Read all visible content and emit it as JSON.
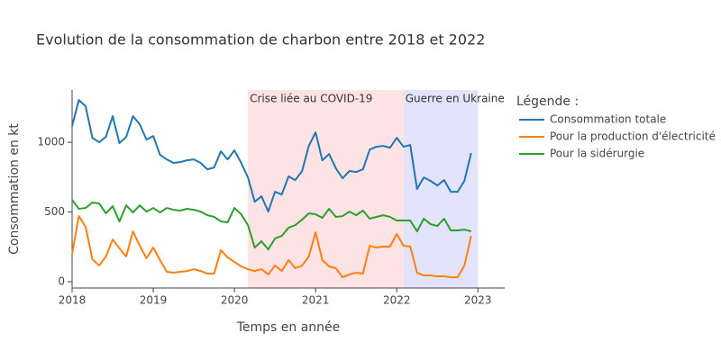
{
  "chart_data": {
    "type": "line",
    "title": "Evolution de la consommation de charbon entre 2018 et 2022",
    "x_label": "Temps en année",
    "y_label": "Consommation en kt",
    "legend_title": "Légende :",
    "legend_position": "right",
    "grid": false,
    "x": [
      "2018-01",
      "2018-02",
      "2018-03",
      "2018-04",
      "2018-05",
      "2018-06",
      "2018-07",
      "2018-08",
      "2018-09",
      "2018-10",
      "2018-11",
      "2018-12",
      "2019-01",
      "2019-02",
      "2019-03",
      "2019-04",
      "2019-05",
      "2019-06",
      "2019-07",
      "2019-08",
      "2019-09",
      "2019-10",
      "2019-11",
      "2019-12",
      "2020-01",
      "2020-02",
      "2020-03",
      "2020-04",
      "2020-05",
      "2020-06",
      "2020-07",
      "2020-08",
      "2020-09",
      "2020-10",
      "2020-11",
      "2020-12",
      "2021-01",
      "2021-02",
      "2021-03",
      "2021-04",
      "2021-05",
      "2021-06",
      "2021-07",
      "2021-08",
      "2021-09",
      "2021-10",
      "2021-11",
      "2021-12",
      "2022-01",
      "2022-02",
      "2022-03",
      "2022-04",
      "2022-05",
      "2022-06",
      "2022-07",
      "2022-08",
      "2022-09",
      "2022-10",
      "2022-11",
      "2022-12"
    ],
    "series": [
      {
        "name": "Consommation totale",
        "color": "#1f77b4",
        "values": [
          1116,
          1303,
          1258,
          1032,
          1000,
          1039,
          1187,
          994,
          1039,
          1187,
          1129,
          1019,
          1045,
          910,
          877,
          852,
          858,
          871,
          877,
          852,
          806,
          819,
          935,
          877,
          942,
          852,
          748,
          574,
          613,
          503,
          645,
          626,
          755,
          729,
          794,
          974,
          1071,
          871,
          916,
          813,
          742,
          794,
          787,
          806,
          948,
          968,
          974,
          961,
          1032,
          968,
          981,
          665,
          748,
          723,
          690,
          729,
          645,
          645,
          723,
          923
        ]
      },
      {
        "name": "Pour la production d'électricité",
        "color": "#ff7f0e",
        "values": [
          200,
          471,
          394,
          161,
          116,
          181,
          303,
          239,
          181,
          361,
          258,
          168,
          245,
          155,
          71,
          65,
          71,
          77,
          90,
          77,
          58,
          58,
          226,
          174,
          142,
          110,
          90,
          77,
          90,
          52,
          116,
          77,
          155,
          97,
          116,
          181,
          355,
          155,
          110,
          97,
          32,
          52,
          65,
          58,
          258,
          245,
          252,
          252,
          342,
          258,
          252,
          65,
          45,
          45,
          39,
          39,
          32,
          32,
          116,
          329
        ]
      },
      {
        "name": "Pour la sidérurgie",
        "color": "#2ca02c",
        "values": [
          587,
          523,
          529,
          568,
          561,
          490,
          542,
          432,
          548,
          497,
          548,
          503,
          529,
          497,
          529,
          516,
          510,
          523,
          516,
          503,
          477,
          465,
          432,
          426,
          529,
          484,
          406,
          245,
          290,
          232,
          310,
          329,
          387,
          406,
          445,
          490,
          484,
          458,
          523,
          465,
          471,
          503,
          477,
          510,
          452,
          465,
          477,
          465,
          439,
          439,
          439,
          361,
          452,
          413,
          400,
          452,
          368,
          368,
          374,
          361
        ]
      }
    ],
    "xlim": [
      2018,
      2023.33
    ],
    "xticks": [
      2018,
      2019,
      2020,
      2021,
      2022,
      2023
    ],
    "ylim": [
      -45,
      1375
    ],
    "yticks": [
      0,
      500,
      1000
    ],
    "shaded_regions": [
      {
        "label": "Crise liée au COVID-19",
        "start": "2020-03",
        "end": "2022-02",
        "color": "#fde3e3"
      },
      {
        "label": "Guerre en Ukraine",
        "start": "2022-02",
        "end": "2023-01",
        "color": "#e3e3fb"
      }
    ]
  }
}
